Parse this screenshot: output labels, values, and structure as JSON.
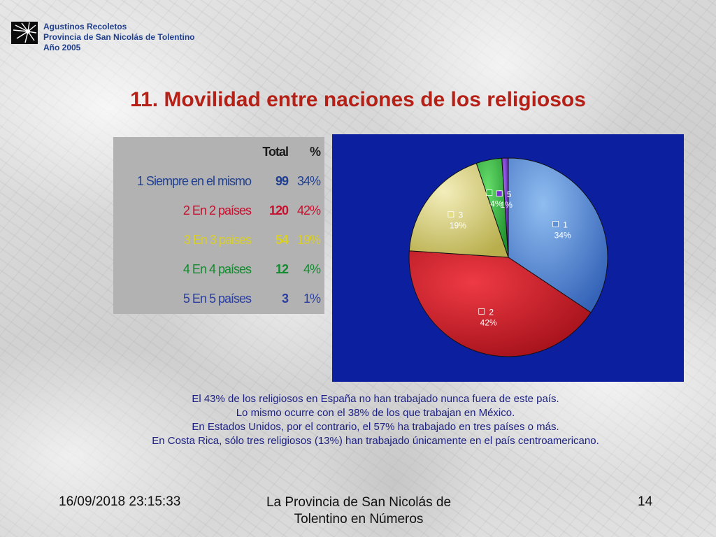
{
  "header": {
    "org_lines": [
      "Agustinos Recoletos",
      "Provincia de San Nicolás de Tolentino",
      "Año 2005"
    ]
  },
  "title": "11. Movilidad entre naciones de los religiosos",
  "table": {
    "headers": [
      "",
      "Total",
      "%"
    ],
    "rows": [
      {
        "label": "1 Siempre en el mismo",
        "total": "99",
        "pct": "34%",
        "color": "#1f3f8f"
      },
      {
        "label": "2 En 2 países",
        "total": "120",
        "pct": "42%",
        "color": "#c8102e"
      },
      {
        "label": "3 En 3 paises",
        "total": "54",
        "pct": "19%",
        "color": "#d8cf2a"
      },
      {
        "label": "4 En 4 países",
        "total": "12",
        "pct": "4%",
        "color": "#138a2f"
      },
      {
        "label": "5 En 5 países",
        "total": "3",
        "pct": "1%",
        "color": "#2b3fa0"
      }
    ]
  },
  "chart_data": {
    "type": "pie",
    "background": "#0c1f9e",
    "slices": [
      {
        "label": "1",
        "value": 99,
        "percent_label": "34%",
        "color": "#5a91d6"
      },
      {
        "label": "2",
        "value": 120,
        "percent_label": "42%",
        "color": "#d42a35"
      },
      {
        "label": "3",
        "value": 54,
        "percent_label": "19%",
        "color": "#e3dc83"
      },
      {
        "label": "4",
        "value": 12,
        "percent_label": "4%",
        "color": "#3fbf4a"
      },
      {
        "label": "5",
        "value": 3,
        "percent_label": "1%",
        "color": "#7a2fd6"
      }
    ]
  },
  "caption": {
    "lines": [
      "El 43% de los religiosos en España no han trabajado nunca fuera de este país.",
      "Lo mismo ocurre con el 38% de los que trabajan en México.",
      "En Estados Unidos, por el contrario, el 57% ha trabajado en tres países o más.",
      "En Costa Rica, sólo tres religiosos (13%) han trabajado únicamente en el país centroamericano."
    ]
  },
  "footer": {
    "date": "16/09/2018 23:15:33",
    "title_line1": "La Provincia de San Nicolás de",
    "title_line2": "Tolentino en Números",
    "page": "14"
  }
}
